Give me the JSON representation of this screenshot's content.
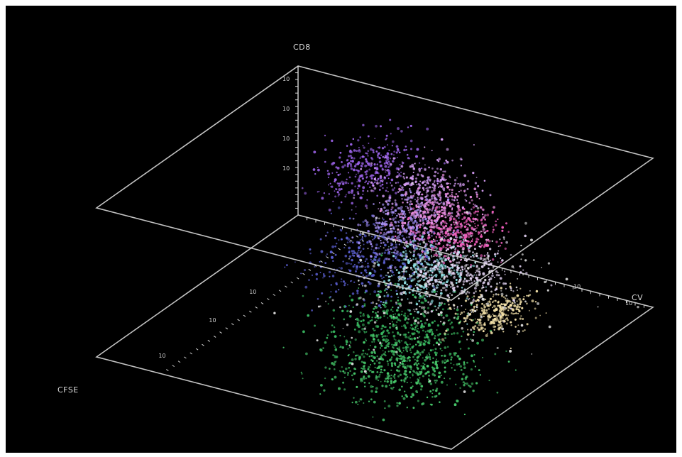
{
  "chart_data": {
    "type": "scatter",
    "projection": "3d",
    "grid": false,
    "axes": {
      "x": {
        "label": "CFSE",
        "ticks": [
          "10",
          "10",
          "10"
        ]
      },
      "y": {
        "label": "CV",
        "ticks": [
          "10",
          "10"
        ]
      },
      "z": {
        "label": "CD8",
        "ticks": [
          "10",
          "10",
          "10",
          "10"
        ]
      }
    },
    "clusters": [
      {
        "color": "#46c86a",
        "center": [
          0.22,
          0.74,
          0.18
        ],
        "spread": [
          0.1,
          0.09,
          0.06
        ],
        "points": 520
      },
      {
        "color": "#38b860",
        "center": [
          0.33,
          0.66,
          0.3
        ],
        "spread": [
          0.09,
          0.08,
          0.08
        ],
        "points": 380
      },
      {
        "color": "#8fe0e4",
        "center": [
          0.48,
          0.66,
          0.52
        ],
        "spread": [
          0.07,
          0.05,
          0.08
        ],
        "points": 330
      },
      {
        "color": "#5a5ed0",
        "center": [
          0.46,
          0.5,
          0.52
        ],
        "spread": [
          0.09,
          0.07,
          0.1
        ],
        "points": 300
      },
      {
        "color": "#a58ff2",
        "center": [
          0.57,
          0.53,
          0.66
        ],
        "spread": [
          0.07,
          0.05,
          0.08
        ],
        "points": 300
      },
      {
        "color": "#9a62e6",
        "center": [
          0.71,
          0.36,
          0.8
        ],
        "spread": [
          0.09,
          0.05,
          0.07
        ],
        "points": 340
      },
      {
        "color": "#d39cf2",
        "center": [
          0.82,
          0.46,
          0.64
        ],
        "spread": [
          0.06,
          0.06,
          0.08
        ],
        "points": 300
      },
      {
        "color": "#e98ee0",
        "center": [
          0.84,
          0.48,
          0.44
        ],
        "spread": [
          0.07,
          0.05,
          0.06
        ],
        "points": 320
      },
      {
        "color": "#ee5dbb",
        "center": [
          0.88,
          0.52,
          0.3
        ],
        "spread": [
          0.06,
          0.05,
          0.06
        ],
        "points": 280
      },
      {
        "color": "#e4d4f4",
        "center": [
          0.72,
          0.62,
          0.28
        ],
        "spread": [
          0.08,
          0.06,
          0.07
        ],
        "points": 340
      },
      {
        "color": "#f2e0a8",
        "center": [
          0.74,
          0.7,
          0.02
        ],
        "spread": [
          0.06,
          0.04,
          0.04
        ],
        "points": 300
      },
      {
        "color": "#dcdcdc",
        "center": [
          0.62,
          0.6,
          0.2
        ],
        "spread": [
          0.16,
          0.12,
          0.14
        ],
        "points": 260
      }
    ]
  },
  "colors": {
    "background": "#000000",
    "frame": "#d8d8d8",
    "text": "#d9d9d9"
  }
}
